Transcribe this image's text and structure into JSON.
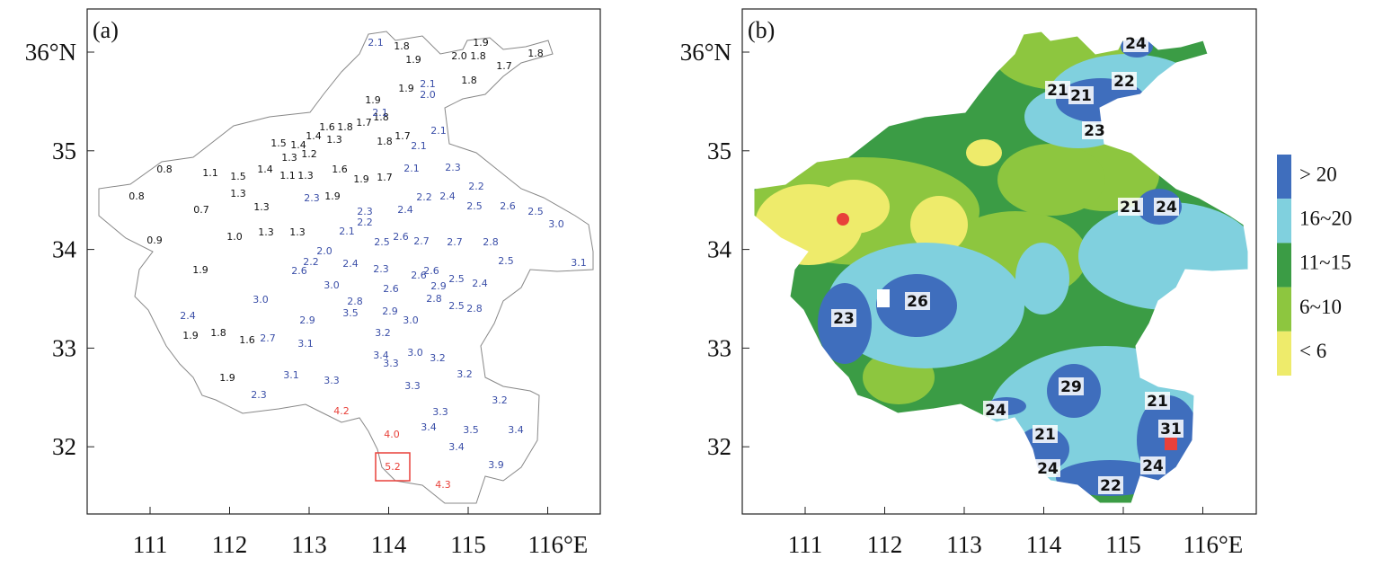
{
  "panels": [
    {
      "label": "(a)",
      "yticks": [
        {
          "value": 36,
          "label": "36°N"
        },
        35,
        34,
        33,
        32
      ],
      "xticks": [
        111,
        112,
        113,
        114,
        115,
        {
          "value": 116,
          "label": "116°E"
        }
      ],
      "station_groups": [
        {
          "color": "#111111",
          "labels": [
            "1.8",
            "1.9",
            "1.9",
            "2.0",
            "1.8",
            "1.7",
            "1.8",
            "1.8",
            "1.9",
            "1.9",
            "1.7",
            "1.8",
            "1.6",
            "1.8",
            "1.4",
            "1.3",
            "1.5",
            "1.4",
            "1.3",
            "1.2",
            "1.8",
            "1.7",
            "0.8",
            "1.1",
            "1.5",
            "1.4",
            "1.1",
            "1.3",
            "1.6",
            "1.9",
            "1.7",
            "1.3",
            "1.3",
            "0.8",
            "0.7",
            "1.9",
            "1.0",
            "1.3",
            "1.3",
            "0.9",
            "1.9",
            "1.9",
            "1.8",
            "1.6",
            "1.9"
          ]
        },
        {
          "color": "#3b4fa8",
          "labels": [
            "2.1",
            "2.1",
            "2.0",
            "2.1",
            "2.1",
            "2.1",
            "2.3",
            "2.1",
            "2.2",
            "2.2",
            "2.4",
            "2.3",
            "2.5",
            "2.6",
            "2.5",
            "3.0",
            "2.4",
            "2.3",
            "2.2",
            "2.1",
            "2.6",
            "2.5",
            "2.7",
            "2.7",
            "2.8",
            "2.0",
            "2.2",
            "2.4",
            "2.6",
            "2.3",
            "2.6",
            "2.6",
            "2.5",
            "2.5",
            "3.1",
            "2.9",
            "3.0",
            "2.6",
            "2.4",
            "2.8",
            "2.8",
            "3.0",
            "3.5",
            "2.9",
            "2.5",
            "2.8",
            "2.9",
            "3.0",
            "2.4",
            "2.7",
            "3.2",
            "3.1",
            "3.4",
            "3.0",
            "3.3",
            "3.2",
            "3.1",
            "3.3",
            "3.2",
            "3.3",
            "2.3",
            "3.2",
            "3.3",
            "3.4",
            "3.5",
            "3.4",
            "3.4",
            "3.9"
          ]
        },
        {
          "color": "#e8413a",
          "labels": [
            "4.2",
            "4.0",
            "5.2",
            "4.3"
          ]
        }
      ]
    },
    {
      "label": "(b)",
      "yticks": [
        {
          "value": 36,
          "label": "36°N"
        },
        35,
        34,
        33,
        32
      ],
      "xticks": [
        111,
        112,
        113,
        114,
        115,
        {
          "value": 116,
          "label": "116°E"
        }
      ],
      "region_labels": [
        "24",
        "22",
        "21",
        "21",
        "23",
        "21",
        "24",
        "26",
        "23",
        "29",
        "21",
        "24",
        "31",
        "21",
        "24",
        "24",
        "22"
      ],
      "legend": [
        {
          "label": "> 20",
          "color": "#3f6ebd"
        },
        {
          "label": "16~20",
          "color": "#80d0de"
        },
        {
          "label": "11~15",
          "color": "#3b9c45"
        },
        {
          "label": "6~10",
          "color": "#8dc63f"
        },
        {
          "label": "< 6",
          "color": "#eeeb6b"
        }
      ]
    }
  ]
}
